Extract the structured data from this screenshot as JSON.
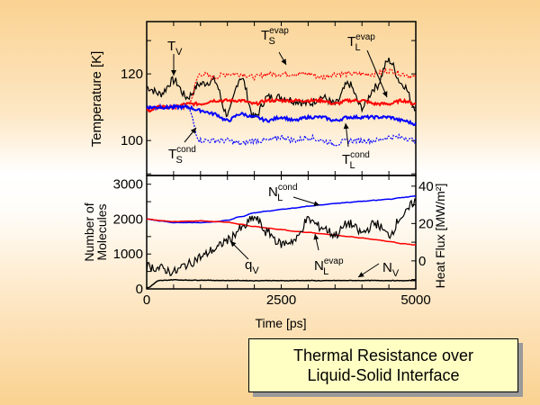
{
  "slide": {
    "title_lines": [
      "Thermal Resistance over",
      "Liquid-Solid Interface"
    ]
  },
  "chart_data": [
    {
      "type": "line",
      "panel": "top",
      "title": "",
      "xlabel": "",
      "ylabel": "Temperature [K]",
      "xlim": [
        0,
        5000
      ],
      "ylim": [
        89.5,
        135.7
      ],
      "x_major_ticks": [],
      "x_minor_step": 500,
      "y_ticks": [
        100,
        120
      ],
      "y_tick_labels": [
        "100",
        "120"
      ],
      "y_minor_ticks": [
        90,
        110,
        130
      ],
      "grid": false,
      "colors": {
        "black": "#000000",
        "red": "#ff0000",
        "blue": "#0000ff"
      },
      "x": [
        0,
        250,
        500,
        750,
        1000,
        1250,
        1500,
        1750,
        2000,
        2250,
        2500,
        2750,
        3000,
        3250,
        3500,
        3750,
        4000,
        4250,
        4500,
        4750,
        5000
      ],
      "series": [
        {
          "name": "T_V",
          "color": "#000000",
          "style": "solid",
          "values": [
            116,
            114,
            118,
            113,
            117,
            118,
            108,
            119,
            107,
            113,
            113,
            112,
            111,
            113,
            111,
            117,
            110,
            116,
            124,
            117,
            110
          ]
        },
        {
          "name": "T_S^evap",
          "color": "#ff0000",
          "style": "dotted",
          "values": [
            109,
            110,
            110,
            110,
            120,
            119,
            120,
            120,
            119,
            120,
            120,
            120,
            120,
            119,
            120,
            120,
            120,
            120,
            121,
            120,
            119
          ]
        },
        {
          "name": "T_L^evap",
          "color": "#ff0000",
          "style": "solid",
          "values": [
            109,
            110,
            110,
            111,
            111,
            112,
            112,
            112,
            111,
            112,
            112,
            112,
            112,
            112,
            111,
            112,
            112,
            111,
            111,
            112,
            111
          ]
        },
        {
          "name": "T_L^cond",
          "color": "#0000ff",
          "style": "solid",
          "values": [
            110,
            110,
            110,
            110,
            109,
            108,
            106,
            108,
            107,
            106,
            107,
            106,
            107,
            107,
            106,
            107,
            107,
            107,
            107,
            106,
            105
          ]
        },
        {
          "name": "T_S^cond",
          "color": "#0000ff",
          "style": "dotted",
          "values": [
            110,
            110,
            110,
            110,
            100,
            100,
            100,
            99,
            100,
            100,
            101,
            100,
            101,
            100,
            99,
            100,
            100,
            100,
            101,
            101,
            100
          ]
        }
      ],
      "annotations": [
        {
          "base": "T",
          "sub": "V",
          "sup": "",
          "target": "T_V"
        },
        {
          "base": "T",
          "sub": "S",
          "sup": "evap",
          "target": "T_S^evap"
        },
        {
          "base": "T",
          "sub": "L",
          "sup": "evap",
          "target": "T_L^evap"
        },
        {
          "base": "T",
          "sub": "S",
          "sup": "cond",
          "target": "T_S^cond"
        },
        {
          "base": "T",
          "sub": "L",
          "sup": "cond",
          "target": "T_L^cond"
        }
      ]
    },
    {
      "type": "line",
      "panel": "bottom",
      "title": "",
      "xlabel": "Time [ps]",
      "ylabel": "Number of Molecules",
      "ylabel_lines": [
        "Number of",
        "Molecules"
      ],
      "y2label": "Heat Flux [MW/m²]",
      "xlim": [
        0,
        5000
      ],
      "ylim": [
        0,
        3250
      ],
      "y2lim": [
        -15,
        45.7
      ],
      "x_ticks": [
        0,
        2500,
        5000
      ],
      "x_tick_labels": [
        "0",
        "2500",
        "5000"
      ],
      "x_minor_step": 500,
      "y_ticks": [
        0,
        1000,
        2000,
        3000
      ],
      "y_tick_labels": [
        "0",
        "1000",
        "2000",
        "3000"
      ],
      "y_minor_step": 500,
      "y2_ticks": [
        0,
        20,
        40
      ],
      "y2_tick_labels": [
        "0",
        "20",
        "40"
      ],
      "y2_minor_step": 10,
      "grid": false,
      "x": [
        0,
        250,
        500,
        750,
        1000,
        1250,
        1500,
        1750,
        2000,
        2250,
        2500,
        2750,
        3000,
        3250,
        3500,
        3750,
        4000,
        4250,
        4500,
        4750,
        5000
      ],
      "series": [
        {
          "name": "N_L^cond",
          "axis": "left",
          "color": "#0000ff",
          "style": "solid",
          "values": [
            2000,
            1950,
            1900,
            1900,
            1900,
            1920,
            1970,
            2070,
            2180,
            2230,
            2280,
            2320,
            2370,
            2410,
            2450,
            2480,
            2510,
            2540,
            2570,
            2620,
            2660
          ]
        },
        {
          "name": "N_L^evap",
          "axis": "left",
          "color": "#ff0000",
          "style": "solid",
          "values": [
            2000,
            1960,
            1930,
            1940,
            1950,
            1930,
            1910,
            1850,
            1790,
            1740,
            1700,
            1650,
            1620,
            1580,
            1540,
            1500,
            1460,
            1410,
            1360,
            1300,
            1260
          ]
        },
        {
          "name": "N_V",
          "axis": "left",
          "color": "#000000",
          "style": "solid",
          "values": [
            30,
            240,
            260,
            250,
            250,
            245,
            240,
            240,
            235,
            240,
            235,
            240,
            240,
            235,
            240,
            240,
            240,
            240,
            240,
            235,
            240
          ]
        },
        {
          "name": "q_V",
          "axis": "right",
          "color": "#000000",
          "style": "solid",
          "values": [
            -3,
            -4,
            -6,
            -2,
            2,
            6,
            11,
            17,
            23,
            15,
            9,
            11,
            22,
            18,
            14,
            20,
            15,
            20,
            14,
            24,
            32
          ]
        }
      ],
      "annotations": [
        {
          "base": "N",
          "sub": "L",
          "sup": "cond",
          "target": "N_L^cond"
        },
        {
          "base": "N",
          "sub": "L",
          "sup": "evap",
          "target": "N_L^evap"
        },
        {
          "base": "N",
          "sub": "V",
          "sup": "",
          "target": "N_V"
        },
        {
          "base": "q",
          "sub": "V",
          "sup": "",
          "target": "q_V"
        }
      ]
    }
  ]
}
